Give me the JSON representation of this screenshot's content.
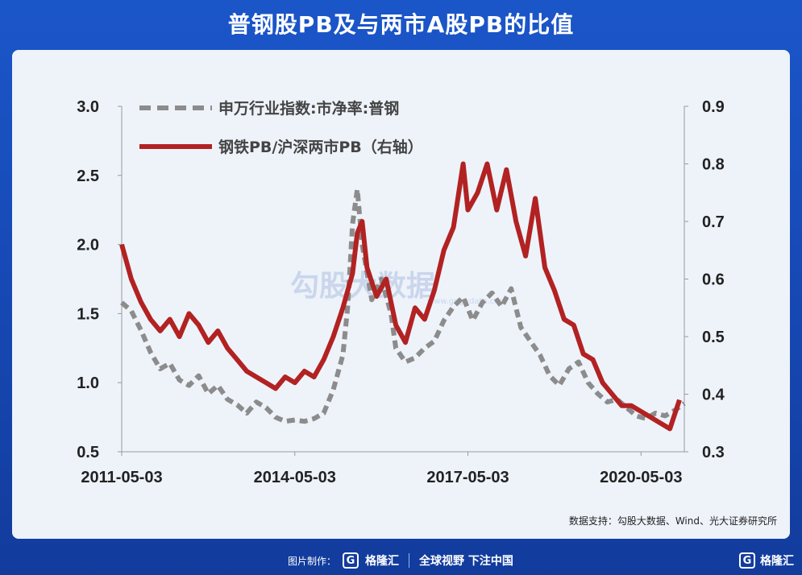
{
  "page": {
    "title": "普钢股PB及与两市A股PB的比值",
    "source": "数据支持：勾股大数据、Wind、光大证券研究所",
    "watermark": "勾股大数据",
    "watermark_url": "www.gogudata.com"
  },
  "footer": {
    "credit_label": "图片制作：",
    "brand": "格隆汇",
    "slogan": "全球视野 下注中国",
    "logo_letter": "G"
  },
  "colors": {
    "background": "#1646b0",
    "card": "#eef3fa",
    "series_gray": "#8c8c8c",
    "series_red": "#b22222"
  },
  "chart_data": {
    "type": "line",
    "x_ticks": [
      "2011-05-03",
      "2014-05-03",
      "2017-05-03",
      "2020-05-03"
    ],
    "y_left": {
      "min": 0.5,
      "max": 3.0,
      "ticks": [
        "0.5",
        "1.0",
        "1.5",
        "2.0",
        "2.5",
        "3.0"
      ]
    },
    "y_right": {
      "min": 0.3,
      "max": 0.9,
      "ticks": [
        "0.3",
        "0.4",
        "0.5",
        "0.6",
        "0.7",
        "0.8",
        "0.9"
      ]
    },
    "legend_position": "top-left",
    "grid": false,
    "series": [
      {
        "name": "申万行业指数:市净率:普钢",
        "axis": "left",
        "style": "dashed",
        "color": "#8c8c8c",
        "points": [
          [
            "2011-05",
            1.58
          ],
          [
            "2011-07",
            1.52
          ],
          [
            "2011-09",
            1.38
          ],
          [
            "2011-11",
            1.22
          ],
          [
            "2012-01",
            1.1
          ],
          [
            "2012-03",
            1.14
          ],
          [
            "2012-05",
            1.02
          ],
          [
            "2012-07",
            0.98
          ],
          [
            "2012-09",
            1.05
          ],
          [
            "2012-11",
            0.92
          ],
          [
            "2013-01",
            0.98
          ],
          [
            "2013-03",
            0.88
          ],
          [
            "2013-05",
            0.84
          ],
          [
            "2013-07",
            0.78
          ],
          [
            "2013-09",
            0.86
          ],
          [
            "2013-11",
            0.82
          ],
          [
            "2014-01",
            0.75
          ],
          [
            "2014-03",
            0.72
          ],
          [
            "2014-05",
            0.73
          ],
          [
            "2014-07",
            0.72
          ],
          [
            "2014-09",
            0.74
          ],
          [
            "2014-11",
            0.78
          ],
          [
            "2015-01",
            0.95
          ],
          [
            "2015-03",
            1.2
          ],
          [
            "2015-04",
            1.55
          ],
          [
            "2015-05",
            2.15
          ],
          [
            "2015-06",
            2.4
          ],
          [
            "2015-07",
            2.0
          ],
          [
            "2015-09",
            1.6
          ],
          [
            "2015-11",
            1.75
          ],
          [
            "2016-01",
            1.5
          ],
          [
            "2016-02",
            1.25
          ],
          [
            "2016-04",
            1.15
          ],
          [
            "2016-06",
            1.18
          ],
          [
            "2016-08",
            1.25
          ],
          [
            "2016-10",
            1.3
          ],
          [
            "2016-12",
            1.45
          ],
          [
            "2017-02",
            1.55
          ],
          [
            "2017-04",
            1.62
          ],
          [
            "2017-06",
            1.45
          ],
          [
            "2017-08",
            1.58
          ],
          [
            "2017-10",
            1.65
          ],
          [
            "2017-12",
            1.55
          ],
          [
            "2018-02",
            1.68
          ],
          [
            "2018-04",
            1.4
          ],
          [
            "2018-06",
            1.3
          ],
          [
            "2018-08",
            1.2
          ],
          [
            "2018-10",
            1.05
          ],
          [
            "2018-12",
            0.98
          ],
          [
            "2019-02",
            1.1
          ],
          [
            "2019-04",
            1.15
          ],
          [
            "2019-06",
            1.0
          ],
          [
            "2019-08",
            0.92
          ],
          [
            "2019-10",
            0.86
          ],
          [
            "2019-12",
            0.88
          ],
          [
            "2020-02",
            0.82
          ],
          [
            "2020-04",
            0.76
          ],
          [
            "2020-06",
            0.74
          ],
          [
            "2020-08",
            0.78
          ],
          [
            "2020-10",
            0.76
          ],
          [
            "2020-12",
            0.8
          ],
          [
            "2021-02",
            0.85
          ]
        ]
      },
      {
        "name": "钢铁PB/沪深两市PB（右轴）",
        "axis": "right",
        "style": "solid",
        "color": "#b22222",
        "points": [
          [
            "2011-05",
            0.66
          ],
          [
            "2011-07",
            0.6
          ],
          [
            "2011-09",
            0.56
          ],
          [
            "2011-11",
            0.53
          ],
          [
            "2012-01",
            0.51
          ],
          [
            "2012-03",
            0.53
          ],
          [
            "2012-05",
            0.5
          ],
          [
            "2012-07",
            0.54
          ],
          [
            "2012-09",
            0.52
          ],
          [
            "2012-11",
            0.49
          ],
          [
            "2013-01",
            0.51
          ],
          [
            "2013-03",
            0.48
          ],
          [
            "2013-05",
            0.46
          ],
          [
            "2013-07",
            0.44
          ],
          [
            "2013-09",
            0.43
          ],
          [
            "2013-11",
            0.42
          ],
          [
            "2014-01",
            0.41
          ],
          [
            "2014-03",
            0.43
          ],
          [
            "2014-05",
            0.42
          ],
          [
            "2014-07",
            0.44
          ],
          [
            "2014-09",
            0.43
          ],
          [
            "2014-11",
            0.46
          ],
          [
            "2015-01",
            0.5
          ],
          [
            "2015-03",
            0.55
          ],
          [
            "2015-04",
            0.58
          ],
          [
            "2015-05",
            0.61
          ],
          [
            "2015-06",
            0.68
          ],
          [
            "2015-07",
            0.7
          ],
          [
            "2015-08",
            0.62
          ],
          [
            "2015-10",
            0.57
          ],
          [
            "2015-12",
            0.6
          ],
          [
            "2016-02",
            0.52
          ],
          [
            "2016-04",
            0.49
          ],
          [
            "2016-06",
            0.55
          ],
          [
            "2016-08",
            0.53
          ],
          [
            "2016-10",
            0.58
          ],
          [
            "2016-12",
            0.65
          ],
          [
            "2017-02",
            0.69
          ],
          [
            "2017-04",
            0.8
          ],
          [
            "2017-05",
            0.72
          ],
          [
            "2017-07",
            0.75
          ],
          [
            "2017-09",
            0.8
          ],
          [
            "2017-11",
            0.72
          ],
          [
            "2018-01",
            0.79
          ],
          [
            "2018-03",
            0.7
          ],
          [
            "2018-05",
            0.64
          ],
          [
            "2018-07",
            0.74
          ],
          [
            "2018-09",
            0.62
          ],
          [
            "2018-11",
            0.58
          ],
          [
            "2019-01",
            0.53
          ],
          [
            "2019-03",
            0.52
          ],
          [
            "2019-05",
            0.47
          ],
          [
            "2019-07",
            0.46
          ],
          [
            "2019-09",
            0.42
          ],
          [
            "2019-11",
            0.4
          ],
          [
            "2020-01",
            0.38
          ],
          [
            "2020-03",
            0.38
          ],
          [
            "2020-05",
            0.37
          ],
          [
            "2020-07",
            0.36
          ],
          [
            "2020-09",
            0.35
          ],
          [
            "2020-11",
            0.34
          ],
          [
            "2021-01",
            0.39
          ]
        ]
      }
    ]
  }
}
